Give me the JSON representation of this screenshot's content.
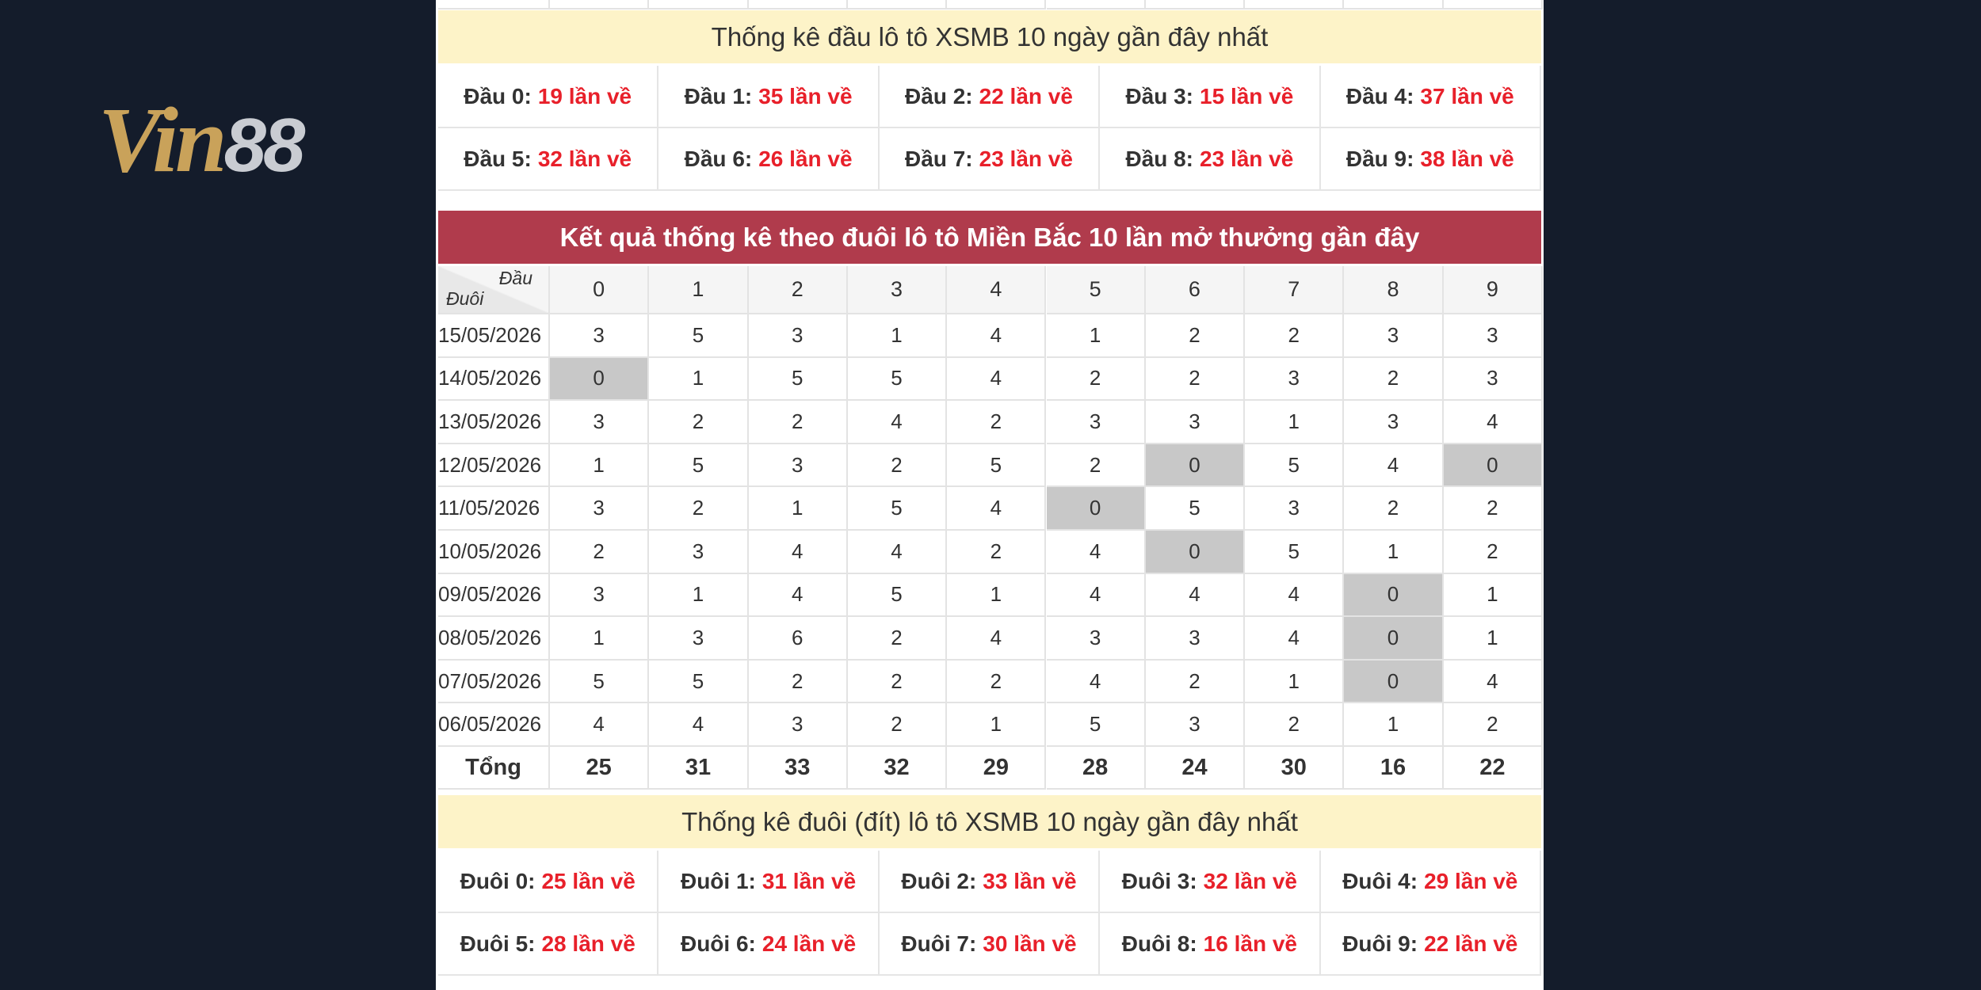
{
  "logo": {
    "part1": "Vin",
    "part2": "88"
  },
  "head_stats": {
    "title": "Thống kê đầu lô tô XSMB 10 ngày gần đây nhất",
    "items": [
      {
        "label": "Đầu 0:",
        "count": "19 lần về"
      },
      {
        "label": "Đầu 1:",
        "count": "35 lần về"
      },
      {
        "label": "Đầu 2:",
        "count": "22 lần về"
      },
      {
        "label": "Đầu 3:",
        "count": "15 lần về"
      },
      {
        "label": "Đầu 4:",
        "count": "37 lần về"
      },
      {
        "label": "Đầu 5:",
        "count": "32 lần về"
      },
      {
        "label": "Đầu 6:",
        "count": "26 lần về"
      },
      {
        "label": "Đầu 7:",
        "count": "23 lần về"
      },
      {
        "label": "Đầu 8:",
        "count": "23 lần về"
      },
      {
        "label": "Đầu 9:",
        "count": "38 lần về"
      }
    ]
  },
  "table": {
    "title": "Kết quả thống kê theo đuôi lô tô Miền Bắc 10 lần mở thưởng gần đây",
    "corner_top": "Đầu",
    "corner_bottom": "Đuôi",
    "columns": [
      "0",
      "1",
      "2",
      "3",
      "4",
      "5",
      "6",
      "7",
      "8",
      "9"
    ],
    "rows": [
      {
        "date": "15/05/2026",
        "values": [
          3,
          5,
          3,
          1,
          4,
          1,
          2,
          2,
          3,
          3
        ]
      },
      {
        "date": "14/05/2026",
        "values": [
          0,
          1,
          5,
          5,
          4,
          2,
          2,
          3,
          2,
          3
        ]
      },
      {
        "date": "13/05/2026",
        "values": [
          3,
          2,
          2,
          4,
          2,
          3,
          3,
          1,
          3,
          4
        ]
      },
      {
        "date": "12/05/2026",
        "values": [
          1,
          5,
          3,
          2,
          5,
          2,
          0,
          5,
          4,
          0
        ]
      },
      {
        "date": "11/05/2026",
        "values": [
          3,
          2,
          1,
          5,
          4,
          0,
          5,
          3,
          2,
          2
        ]
      },
      {
        "date": "10/05/2026",
        "values": [
          2,
          3,
          4,
          4,
          2,
          4,
          0,
          5,
          1,
          2
        ]
      },
      {
        "date": "09/05/2026",
        "values": [
          3,
          1,
          4,
          5,
          1,
          4,
          4,
          4,
          0,
          1
        ]
      },
      {
        "date": "08/05/2026",
        "values": [
          1,
          3,
          6,
          2,
          4,
          3,
          3,
          4,
          0,
          1
        ]
      },
      {
        "date": "07/05/2026",
        "values": [
          5,
          5,
          2,
          2,
          2,
          4,
          2,
          1,
          0,
          4
        ]
      },
      {
        "date": "06/05/2026",
        "values": [
          4,
          4,
          3,
          2,
          1,
          5,
          3,
          2,
          1,
          2
        ]
      }
    ],
    "total_label": "Tổng",
    "totals": [
      25,
      31,
      33,
      32,
      29,
      28,
      24,
      30,
      16,
      22
    ]
  },
  "tail_stats": {
    "title": "Thống kê đuôi (đít) lô tô XSMB 10 ngày gần đây nhất",
    "items": [
      {
        "label": "Đuôi 0:",
        "count": "25 lần về"
      },
      {
        "label": "Đuôi 1:",
        "count": "31 lần về"
      },
      {
        "label": "Đuôi 2:",
        "count": "33 lần về"
      },
      {
        "label": "Đuôi 3:",
        "count": "32 lần về"
      },
      {
        "label": "Đuôi 4:",
        "count": "29 lần về"
      },
      {
        "label": "Đuôi 5:",
        "count": "28 lần về"
      },
      {
        "label": "Đuôi 6:",
        "count": "24 lần về"
      },
      {
        "label": "Đuôi 7:",
        "count": "30 lần về"
      },
      {
        "label": "Đuôi 8:",
        "count": "16 lần về"
      },
      {
        "label": "Đuôi 9:",
        "count": "22 lần về"
      }
    ]
  }
}
